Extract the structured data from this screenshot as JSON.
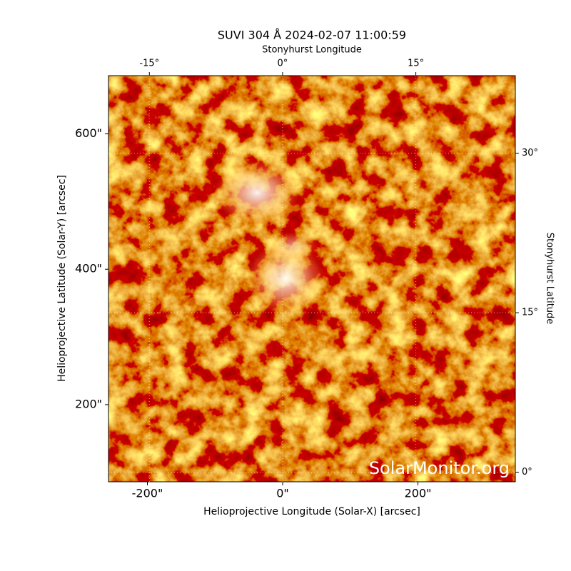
{
  "chart_data": {
    "type": "image",
    "title": "SUVI 304 Å 2024-02-07 11:00:59",
    "xlabel": "Helioprojective Longitude (Solar-X) [arcsec]",
    "ylabel": "Helioprojective Latitude (Solar-Y) [arcsec]",
    "x2label": "Stonyhurst Longitude",
    "y2label": "Stonyhurst Latitude",
    "watermark": "SolarMonitor.org",
    "xlim": [
      -257.5,
      344
    ],
    "ylim": [
      86,
      686
    ],
    "xticks": [
      {
        "value": -200,
        "label": "-200\""
      },
      {
        "value": 0,
        "label": "0\""
      },
      {
        "value": 200,
        "label": "200\""
      }
    ],
    "yticks": [
      {
        "value": 200,
        "label": "200\""
      },
      {
        "value": 400,
        "label": "400\""
      },
      {
        "value": 600,
        "label": "600\""
      }
    ],
    "x2lim": [
      -19.6,
      26.2
    ],
    "x2ticks": [
      {
        "value": -15,
        "label": "-15°"
      },
      {
        "value": 0,
        "label": "0°"
      },
      {
        "value": 15,
        "label": "15°"
      }
    ],
    "y2lim": [
      -0.9,
      37.3
    ],
    "y2ticks": [
      {
        "value": 0,
        "label": "0°"
      },
      {
        "value": 15,
        "label": "15°"
      },
      {
        "value": 30,
        "label": "30°"
      }
    ],
    "grid": true
  }
}
